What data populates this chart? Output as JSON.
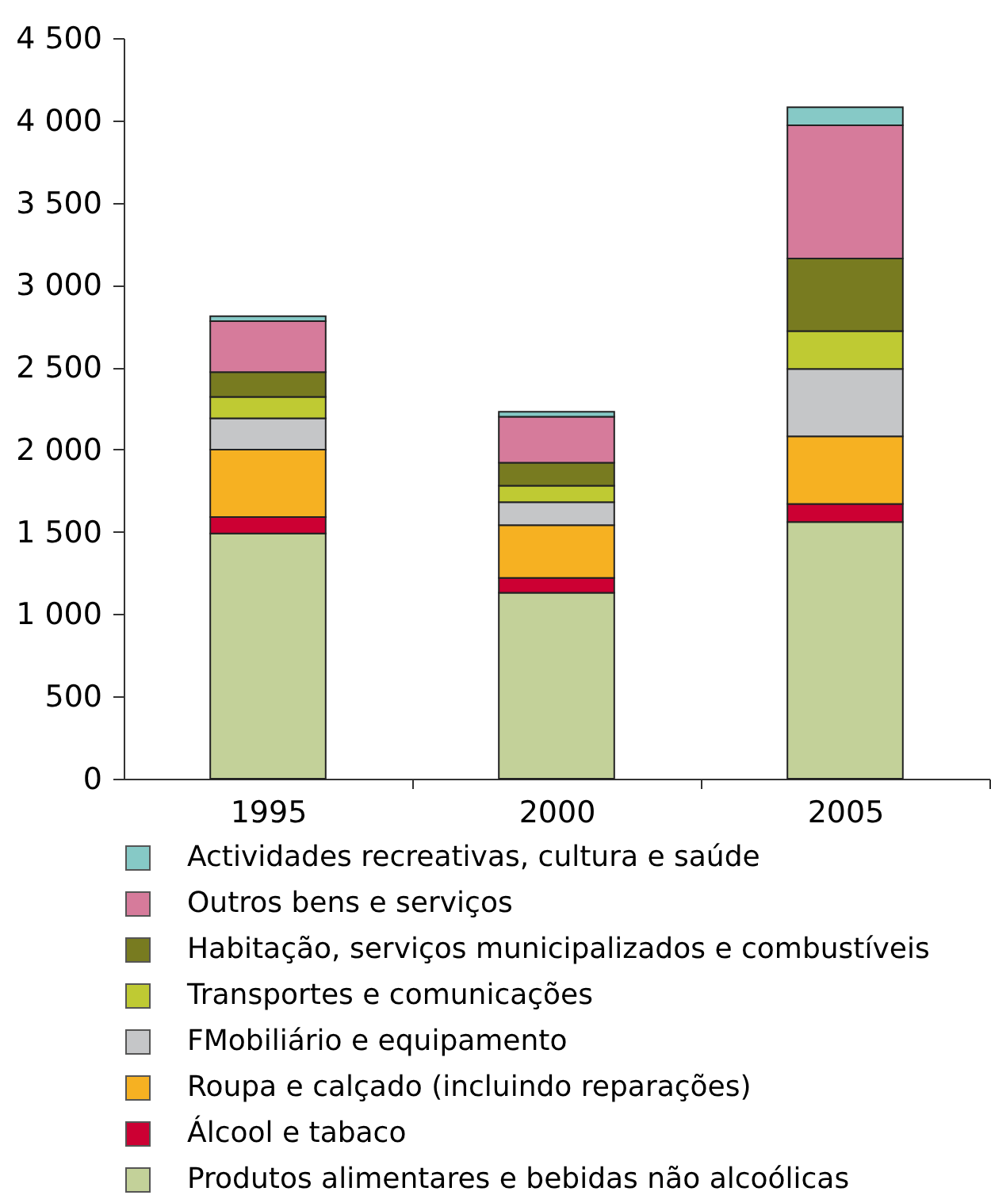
{
  "chart_data": {
    "type": "bar",
    "stacked": true,
    "categories": [
      "1995",
      "2000",
      "2005"
    ],
    "series": [
      {
        "name": "Produtos alimentares e bebidas não alcoólicas",
        "color": "#c3d199",
        "values": [
          1490,
          1130,
          1560
        ]
      },
      {
        "name": "Álcool e tabaco",
        "color": "#cc0033",
        "values": [
          100,
          90,
          110
        ]
      },
      {
        "name": "Roupa e calçado (incluindo reparações)",
        "color": "#f6b122",
        "values": [
          410,
          320,
          410
        ]
      },
      {
        "name": "FMobiliário e equipamento",
        "color": "#c5c6c8",
        "values": [
          190,
          140,
          410
        ]
      },
      {
        "name": "Transportes e comunicações",
        "color": "#bfca33",
        "values": [
          130,
          100,
          230
        ]
      },
      {
        "name": "Habitação, serviços municipalizados e combustíveis",
        "color": "#787b20",
        "values": [
          150,
          140,
          440
        ]
      },
      {
        "name": "Outros bens e serviços",
        "color": "#d67b9b",
        "values": [
          310,
          280,
          810
        ]
      },
      {
        "name": "Actividades recreativas, cultura e saúde",
        "color": "#86c9c6",
        "values": [
          30,
          30,
          110
        ]
      }
    ],
    "ylim": [
      0,
      4500
    ],
    "yticks": [
      0,
      500,
      {
        "value": 1000,
        "label": "1 000"
      },
      {
        "value": 1500,
        "label": "1 500"
      },
      {
        "value": 2000,
        "label": "2 000"
      },
      {
        "value": 2500,
        "label": "2 500"
      },
      {
        "value": 3000,
        "label": "3 000"
      },
      {
        "value": 3500,
        "label": "3 500"
      },
      {
        "value": 4000,
        "label": "4 000"
      },
      {
        "value": 4500,
        "label": "4 500"
      }
    ],
    "legend": "bottom"
  }
}
